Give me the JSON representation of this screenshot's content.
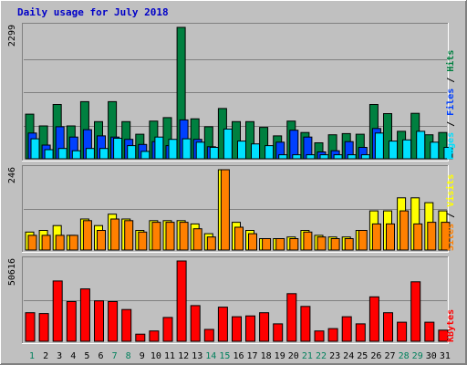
{
  "chart_data": {
    "type": "bar",
    "title": "Daily usage for July 2018",
    "categories": [
      "1",
      "2",
      "3",
      "4",
      "5",
      "6",
      "7",
      "8",
      "9",
      "10",
      "11",
      "12",
      "13",
      "14",
      "15",
      "16",
      "17",
      "18",
      "19",
      "20",
      "21",
      "22",
      "23",
      "24",
      "25",
      "26",
      "27",
      "28",
      "29",
      "30",
      "31"
    ],
    "weekend_days": [
      1,
      7,
      8,
      14,
      15,
      21,
      22,
      28,
      29
    ],
    "panels": [
      {
        "name": "top",
        "ymax_label": "2299",
        "ymax": 2299,
        "axis_labels": [
          "Pages",
          "Files",
          "Hits"
        ],
        "series": [
          {
            "name": "Hits",
            "color": "#008040",
            "values": [
              780,
              575,
              950,
              575,
              1000,
              650,
              1000,
              650,
              430,
              660,
              720,
              2299,
              700,
              560,
              880,
              650,
              650,
              550,
              400,
              660,
              460,
              280,
              420,
              440,
              430,
              950,
              790,
              480,
              795,
              420,
              460
            ]
          },
          {
            "name": "Files",
            "color": "#0040ff",
            "values": [
              450,
              240,
              560,
              380,
              510,
              400,
              380,
              340,
              250,
              300,
              230,
              680,
              340,
              210,
              0,
              0,
              0,
              0,
              290,
              500,
              380,
              120,
              140,
              300,
              200,
              530,
              0,
              0,
              0,
              0,
              0
            ]
          },
          {
            "name": "Pages",
            "color": "#00e0ff",
            "values": [
              350,
              160,
              180,
              140,
              180,
              180,
              360,
              230,
              130,
              380,
              340,
              350,
              290,
              200,
              520,
              310,
              260,
              230,
              70,
              70,
              70,
              70,
              70,
              70,
              70,
              450,
              310,
              330,
              480,
              290,
              200
            ]
          }
        ]
      },
      {
        "name": "middle",
        "ymax_label": "246",
        "ymax": 246,
        "axis_labels": [
          "Sites",
          "Visits"
        ],
        "series": [
          {
            "name": "Visits",
            "color": "#ffff00",
            "values": [
              55,
              60,
              75,
              45,
              95,
              75,
              110,
              95,
              60,
              90,
              90,
              90,
              80,
              50,
              246,
              85,
              60,
              35,
              35,
              40,
              60,
              45,
              40,
              40,
              60,
              120,
              120,
              160,
              160,
              145,
              120
            ]
          },
          {
            "name": "Sites",
            "color": "#ff8000",
            "values": [
              45,
              45,
              45,
              45,
              90,
              60,
              95,
              90,
              55,
              85,
              85,
              85,
              65,
              40,
              246,
              70,
              50,
              35,
              35,
              35,
              55,
              40,
              35,
              35,
              60,
              80,
              80,
              120,
              80,
              85,
              85
            ]
          }
        ]
      },
      {
        "name": "bottom",
        "ymax_label": "50616",
        "ymax": 50616,
        "axis_labels": [
          "KBytes"
        ],
        "series": [
          {
            "name": "KBytes",
            "color": "#ff0000",
            "values": [
              18000,
              17500,
              38000,
              25000,
              33000,
              25500,
              25000,
              20000,
              4500,
              6500,
              15000,
              50616,
              22500,
              7500,
              21500,
              15500,
              16000,
              18000,
              11000,
              30000,
              22000,
              6500,
              8000,
              15500,
              11000,
              28000,
              18000,
              12000,
              37500,
              12000,
              7000
            ]
          }
        ]
      }
    ]
  }
}
